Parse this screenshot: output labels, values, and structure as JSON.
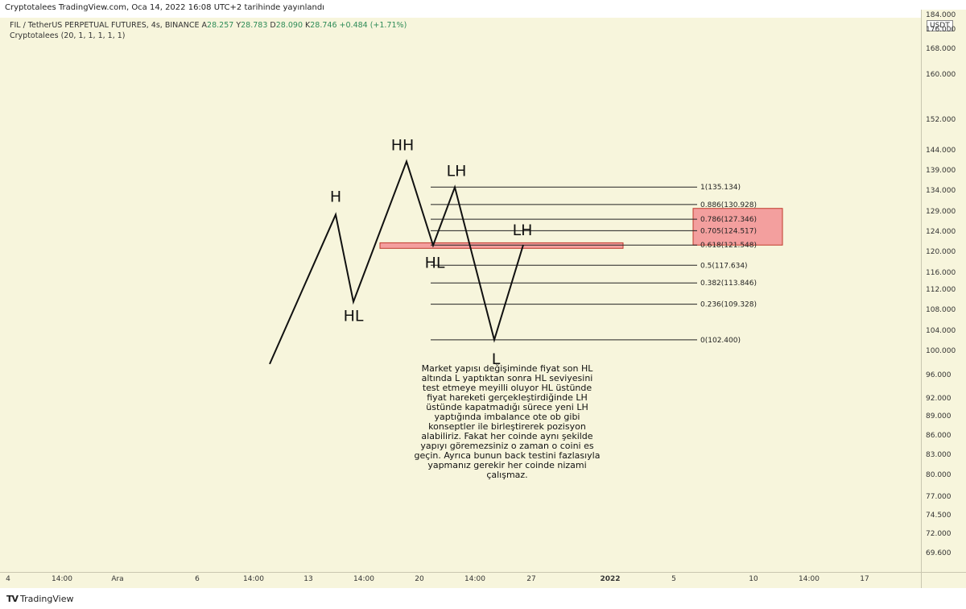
{
  "header": {
    "published": "Cryptotalees TradingView.com, Oca 14, 2022 16:08 UTC+2 tarihinde yayınlandı"
  },
  "legend": {
    "symbol": "FIL / TetherUS PERPETUAL FUTURES, 4s, BINANCE",
    "ohlc": [
      {
        "label": "A",
        "value": "28.257"
      },
      {
        "label": "Y",
        "value": "28.783"
      },
      {
        "label": "D",
        "value": "28.090"
      },
      {
        "label": "K",
        "value": "28.746"
      }
    ],
    "change": "+0.484 (+1.71%)",
    "indicator": "Cryptotalees (20, 1, 1, 1, 1, 1)"
  },
  "axis": {
    "unit": "USDT",
    "y_ticks": [
      "184.000",
      "176.000",
      "168.000",
      "160.000",
      "152.000",
      "144.000",
      "139.000",
      "134.000",
      "129.000",
      "124.000",
      "120.000",
      "116.000",
      "112.000",
      "108.000",
      "104.000",
      "100.000",
      "96.000",
      "92.000",
      "89.000",
      "86.000",
      "83.000",
      "80.000",
      "77.000",
      "74.500",
      "72.000",
      "69.600"
    ],
    "x_ticks": [
      "4",
      "14:00",
      "Ara",
      "6",
      "14:00",
      "13",
      "14:00",
      "20",
      "14:00",
      "27",
      "2022",
      "5",
      "10",
      "14:00",
      "17"
    ]
  },
  "chart_data": {
    "type": "line",
    "title": "FIL / TetherUS PERPETUAL FUTURES, 4s, BINANCE",
    "scale": "log",
    "ylim": [
      69.6,
      184.0
    ],
    "structure_path": {
      "points": [
        {
          "label": "",
          "price": 98.0
        },
        {
          "label": "H",
          "price": 128.5
        },
        {
          "label": "HL",
          "price": 109.8
        },
        {
          "label": "HH",
          "price": 141.5
        },
        {
          "label": "HL",
          "price": 121.5
        },
        {
          "label": "LH",
          "price": 135.1
        },
        {
          "label": "L",
          "price": 102.4
        },
        {
          "label": "LH",
          "price": 121.6
        }
      ]
    },
    "fibonacci": [
      {
        "ratio": "1",
        "price": 135.134,
        "label": "1(135.134)"
      },
      {
        "ratio": "0.886",
        "price": 130.928,
        "label": "0.886(130.928)"
      },
      {
        "ratio": "0.786",
        "price": 127.346,
        "label": "0.786(127.346)"
      },
      {
        "ratio": "0.705",
        "price": 124.517,
        "label": "0.705(124.517)"
      },
      {
        "ratio": "0.618",
        "price": 121.548,
        "label": "0.618(121.548)"
      },
      {
        "ratio": "0.5",
        "price": 117.634,
        "label": "0.5(117.634)"
      },
      {
        "ratio": "0.382",
        "price": 113.846,
        "label": "0.382(113.846)"
      },
      {
        "ratio": "0.236",
        "price": 109.328,
        "label": "0.236(109.328)"
      },
      {
        "ratio": "0",
        "price": 102.4,
        "label": "0(102.400)"
      }
    ],
    "zones": [
      {
        "name": "ob-zone",
        "from_price": 120.9,
        "to_price": 122.0
      },
      {
        "name": "ote-zone",
        "from_price": 121.548,
        "to_price": 130.0
      }
    ],
    "colors": {
      "line": "#111111",
      "fib": "#222222",
      "zone_fill": "#f29a9a",
      "zone_border": "#c0392b"
    }
  },
  "annotation": "Market yapısı değişiminde fiyat son HL altında L yaptıktan sonra HL seviyesini test etmeye meyilli oluyor HL üstünde fiyat hareketi gerçekleştirdiğinde LH üstünde kapatmadığı sürece yeni LH yaptığında imbalance ote ob gibi konseptler ile birleştirerek pozisyon alabiliriz. Fakat her coinde aynı şekilde yapıyı göremezsiniz o  zaman o coini es geçin. Ayrıca bunun back testini fazlasıyla yapmanız gerekir her coinde nizami çalışmaz.",
  "footer": {
    "brand": "TradingView"
  }
}
